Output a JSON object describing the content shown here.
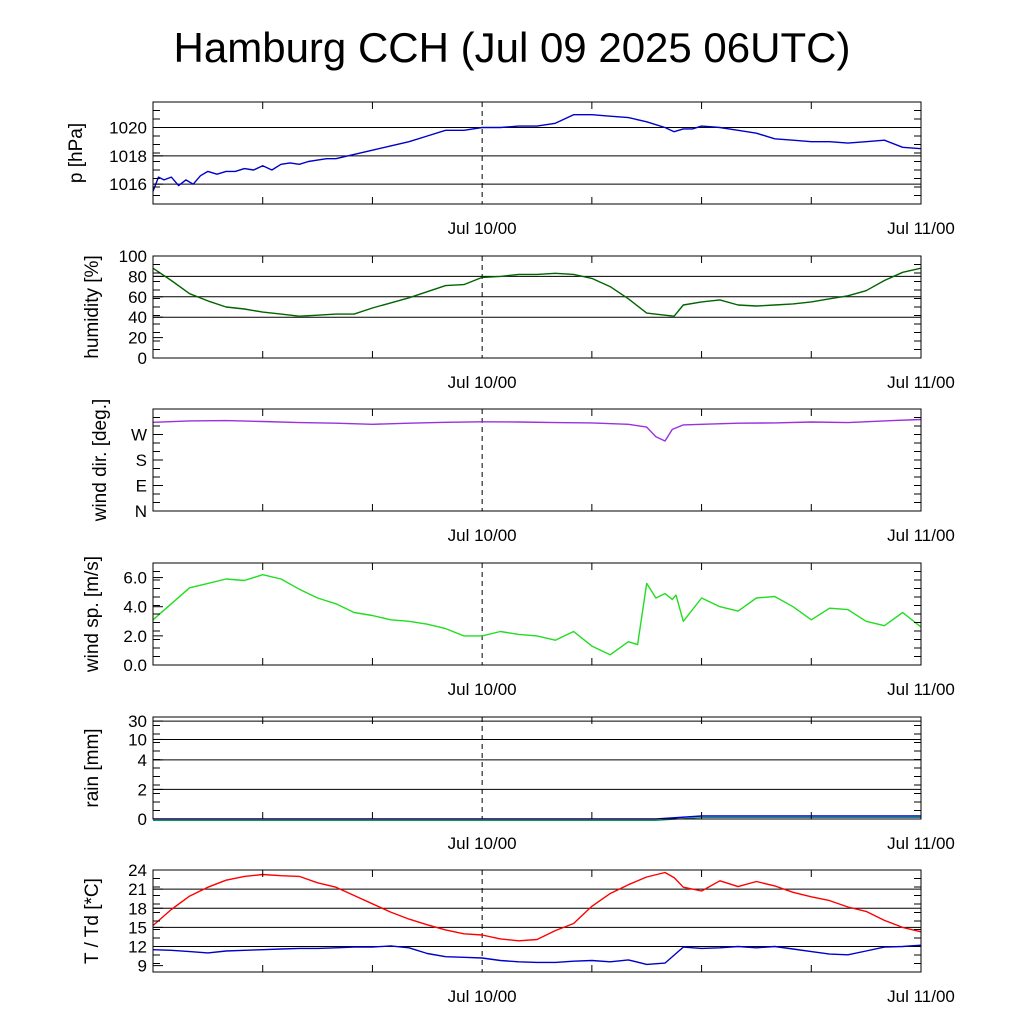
{
  "title": "Hamburg CCH (Jul 09 2025 06UTC)",
  "colors": {
    "pressure": "#0000cc",
    "humidity": "#006400",
    "wind_dir": "#9a30e0",
    "wind_speed": "#22dd22",
    "rain": "#0000cc",
    "rain_accent": "#009966",
    "temperature": "#ff0000",
    "dewpoint": "#0000cc",
    "grid": "#000000"
  },
  "chart_data": [
    {
      "id": "pressure",
      "type": "line",
      "ylabel": "p [hPa]",
      "ylim": [
        1014.6,
        1021.8
      ],
      "yticks": [
        1016,
        1018,
        1020
      ],
      "yticklabels": [
        "1016",
        "1018",
        "1020"
      ],
      "gridlines": [
        1016,
        1018,
        1020
      ],
      "xlim": [
        0,
        42
      ],
      "xticks": [
        18,
        42
      ],
      "xticklabels": [
        "Jul 10/00",
        "Jul 11/00"
      ],
      "marker_x": 18,
      "series": [
        {
          "color_key": "pressure",
          "x": [
            0,
            0.3,
            0.6,
            1.0,
            1.4,
            1.8,
            2.2,
            2.6,
            3.0,
            3.5,
            4.0,
            4.5,
            5.0,
            5.5,
            6.0,
            6.5,
            7.0,
            7.5,
            8.0,
            8.5,
            9.0,
            9.5,
            10.0,
            11.0,
            12.0,
            13.0,
            14.0,
            15.0,
            16.0,
            17.0,
            18.0,
            19.0,
            20.0,
            21.0,
            22.0,
            23.0,
            24.0,
            25.0,
            26.0,
            27.0,
            28.0,
            28.5,
            29.0,
            29.5,
            30.0,
            31.0,
            32.0,
            33.0,
            34.0,
            35.0,
            36.0,
            37.0,
            38.0,
            39.0,
            40.0,
            41.0,
            42.0
          ],
          "y": [
            1015.5,
            1016.5,
            1016.3,
            1016.5,
            1015.9,
            1016.3,
            1016.0,
            1016.6,
            1016.9,
            1016.7,
            1016.9,
            1016.9,
            1017.1,
            1017.0,
            1017.3,
            1017.0,
            1017.4,
            1017.5,
            1017.4,
            1017.6,
            1017.7,
            1017.8,
            1017.8,
            1018.1,
            1018.4,
            1018.7,
            1019.0,
            1019.4,
            1019.8,
            1019.8,
            1020.0,
            1020.0,
            1020.1,
            1020.1,
            1020.3,
            1020.9,
            1020.9,
            1020.8,
            1020.7,
            1020.4,
            1020.0,
            1019.7,
            1019.9,
            1019.9,
            1020.1,
            1020.0,
            1019.8,
            1019.6,
            1019.2,
            1019.1,
            1019.0,
            1019.0,
            1018.9,
            1019.0,
            1019.1,
            1018.6,
            1018.5
          ]
        }
      ]
    },
    {
      "id": "humidity",
      "type": "line",
      "ylabel": "humidity [%]",
      "ylim": [
        0,
        100
      ],
      "yticks": [
        0,
        20,
        40,
        60,
        80,
        100
      ],
      "yticklabels": [
        "0",
        "20",
        "40",
        "60",
        "80",
        "100"
      ],
      "gridlines": [
        40,
        60,
        80
      ],
      "xlim": [
        0,
        42
      ],
      "xticks": [
        18,
        42
      ],
      "xticklabels": [
        "Jul 10/00",
        "Jul 11/00"
      ],
      "marker_x": 18,
      "series": [
        {
          "color_key": "humidity",
          "x": [
            0,
            1,
            2,
            3,
            4,
            5,
            6,
            7,
            8,
            9,
            10,
            11,
            12,
            13,
            14,
            15,
            16,
            17,
            18,
            19,
            20,
            21,
            22,
            23,
            24,
            25,
            26,
            27,
            28,
            28.5,
            29,
            30,
            31,
            32,
            33,
            34,
            35,
            36,
            37,
            38,
            39,
            40,
            41,
            42
          ],
          "y": [
            88,
            76,
            63,
            56,
            50,
            48,
            45,
            43,
            41,
            42,
            43,
            43,
            49,
            54,
            59,
            65,
            71,
            72,
            79,
            80,
            82,
            82,
            83,
            82,
            78,
            70,
            58,
            44,
            42,
            41,
            52,
            55,
            57,
            52,
            51,
            52,
            53,
            55,
            58,
            61,
            66,
            76,
            84,
            88
          ]
        }
      ]
    },
    {
      "id": "wind_direction",
      "type": "line",
      "ylabel": "wind dir. [deg.]",
      "ylim": [
        0,
        360
      ],
      "yticks": [
        0,
        90,
        180,
        270
      ],
      "yticklabels": [
        "N",
        "E",
        "S",
        "W"
      ],
      "gridlines": [],
      "xlim": [
        0,
        42
      ],
      "xticks": [
        18,
        42
      ],
      "xticklabels": [
        "Jul 10/00",
        "Jul 11/00"
      ],
      "marker_x": 18,
      "series": [
        {
          "color_key": "wind_dir",
          "x": [
            0,
            2,
            4,
            6,
            8,
            10,
            12,
            14,
            16,
            18,
            20,
            22,
            24,
            26,
            27,
            27.5,
            28,
            28.4,
            29,
            30,
            32,
            34,
            36,
            38,
            40,
            42
          ],
          "y": [
            313,
            318,
            319,
            316,
            312,
            310,
            306,
            310,
            313,
            315,
            314,
            312,
            311,
            306,
            296,
            262,
            247,
            288,
            304,
            306,
            310,
            311,
            314,
            312,
            318,
            323
          ]
        }
      ]
    },
    {
      "id": "wind_speed",
      "type": "line",
      "ylabel": "wind sp. [m/s]",
      "ylim": [
        0,
        7
      ],
      "yticks": [
        0,
        2,
        4,
        6
      ],
      "yticklabels": [
        "0.0",
        "2.0",
        "4.0",
        "6.0"
      ],
      "gridlines": [],
      "xlim": [
        0,
        42
      ],
      "xticks": [
        18,
        42
      ],
      "xticklabels": [
        "Jul 10/00",
        "Jul 11/00"
      ],
      "marker_x": 18,
      "series": [
        {
          "color_key": "wind_speed",
          "x": [
            0,
            1,
            2,
            3,
            4,
            5,
            6,
            7,
            8,
            9,
            10,
            11,
            12,
            13,
            14,
            15,
            16,
            17,
            18,
            19,
            20,
            21,
            22,
            23,
            24,
            25,
            26,
            26.5,
            27,
            27.5,
            28,
            28.4,
            28.6,
            29,
            30,
            31,
            32,
            33,
            34,
            35,
            36,
            37,
            38,
            39,
            40,
            41,
            42
          ],
          "y": [
            3.1,
            4.2,
            5.3,
            5.6,
            5.9,
            5.8,
            6.2,
            5.9,
            5.2,
            4.6,
            4.2,
            3.6,
            3.4,
            3.1,
            3.0,
            2.8,
            2.5,
            2.0,
            2.0,
            2.3,
            2.1,
            2.0,
            1.7,
            2.3,
            1.3,
            0.7,
            1.6,
            1.4,
            5.6,
            4.6,
            4.9,
            4.5,
            4.8,
            3.0,
            4.6,
            4.0,
            3.7,
            4.6,
            4.7,
            4.0,
            3.1,
            3.9,
            3.8,
            3.0,
            2.7,
            3.6,
            2.6
          ]
        }
      ]
    },
    {
      "id": "rain",
      "type": "line",
      "ylabel": "rain [mm]",
      "scale": "nonlinear",
      "ylim": [
        0,
        30
      ],
      "yticks": [
        0,
        2,
        4,
        10,
        30
      ],
      "yticklabels": [
        "0",
        "2",
        "4",
        "10",
        "30"
      ],
      "gridlines": [
        2,
        4,
        10,
        30
      ],
      "xlim": [
        0,
        42
      ],
      "xticks": [
        18,
        42
      ],
      "xticklabels": [
        "Jul 10/00",
        "Jul 11/00"
      ],
      "marker_x": 18,
      "series": [
        {
          "color_key": "rain",
          "x": [
            0,
            27.5,
            30,
            42
          ],
          "y": [
            0,
            0,
            0.2,
            0.2
          ]
        }
      ]
    },
    {
      "id": "temperature",
      "type": "line",
      "ylabel": "T / Td [*C]",
      "ylim": [
        8,
        24
      ],
      "yticks": [
        9,
        12,
        15,
        18,
        21,
        24
      ],
      "yticklabels": [
        "9",
        "12",
        "15",
        "18",
        "21",
        "24"
      ],
      "gridlines": [
        12,
        15,
        18,
        21,
        24
      ],
      "xlim": [
        0,
        42
      ],
      "xticks": [
        18,
        42
      ],
      "xticklabels": [
        "Jul 10/00",
        "Jul 11/00"
      ],
      "marker_x": 18,
      "series": [
        {
          "name": "T",
          "color_key": "temperature",
          "x": [
            0,
            1,
            2,
            3,
            4,
            5,
            6,
            7,
            8,
            9,
            10,
            11,
            12,
            13,
            14,
            15,
            16,
            17,
            18,
            19,
            20,
            21,
            22,
            23,
            24,
            25,
            26,
            27,
            28,
            28.5,
            29,
            30,
            31,
            32,
            33,
            34,
            35,
            36,
            37,
            38,
            39,
            40,
            41,
            42
          ],
          "y": [
            15.3,
            17.8,
            19.9,
            21.3,
            22.4,
            23.0,
            23.3,
            23.1,
            23.0,
            22.0,
            21.3,
            20.0,
            18.7,
            17.4,
            16.3,
            15.4,
            14.6,
            14.0,
            13.8,
            13.2,
            12.9,
            13.1,
            14.5,
            15.6,
            18.3,
            20.3,
            21.7,
            22.9,
            23.6,
            22.8,
            21.3,
            20.7,
            22.3,
            21.4,
            22.2,
            21.5,
            20.5,
            19.8,
            19.2,
            18.2,
            17.5,
            16.1,
            15.0,
            14.3
          ]
        },
        {
          "name": "Td",
          "color_key": "dewpoint",
          "x": [
            0,
            1,
            2,
            3,
            4,
            5,
            6,
            7,
            8,
            9,
            10,
            11,
            12,
            13,
            14,
            15,
            16,
            17,
            18,
            19,
            20,
            21,
            22,
            23,
            24,
            25,
            26,
            27,
            28,
            29,
            30,
            31,
            32,
            33,
            34,
            35,
            36,
            37,
            38,
            39,
            40,
            41,
            42
          ],
          "y": [
            11.5,
            11.4,
            11.2,
            11.0,
            11.3,
            11.4,
            11.5,
            11.6,
            11.7,
            11.7,
            11.8,
            11.9,
            11.9,
            12.1,
            11.8,
            10.9,
            10.4,
            10.3,
            10.2,
            9.8,
            9.6,
            9.5,
            9.5,
            9.7,
            9.8,
            9.6,
            9.9,
            9.2,
            9.4,
            11.9,
            11.7,
            11.8,
            12.0,
            11.8,
            12.0,
            11.6,
            11.2,
            10.8,
            10.7,
            11.3,
            11.9,
            12.0,
            12.2
          ]
        }
      ]
    }
  ]
}
